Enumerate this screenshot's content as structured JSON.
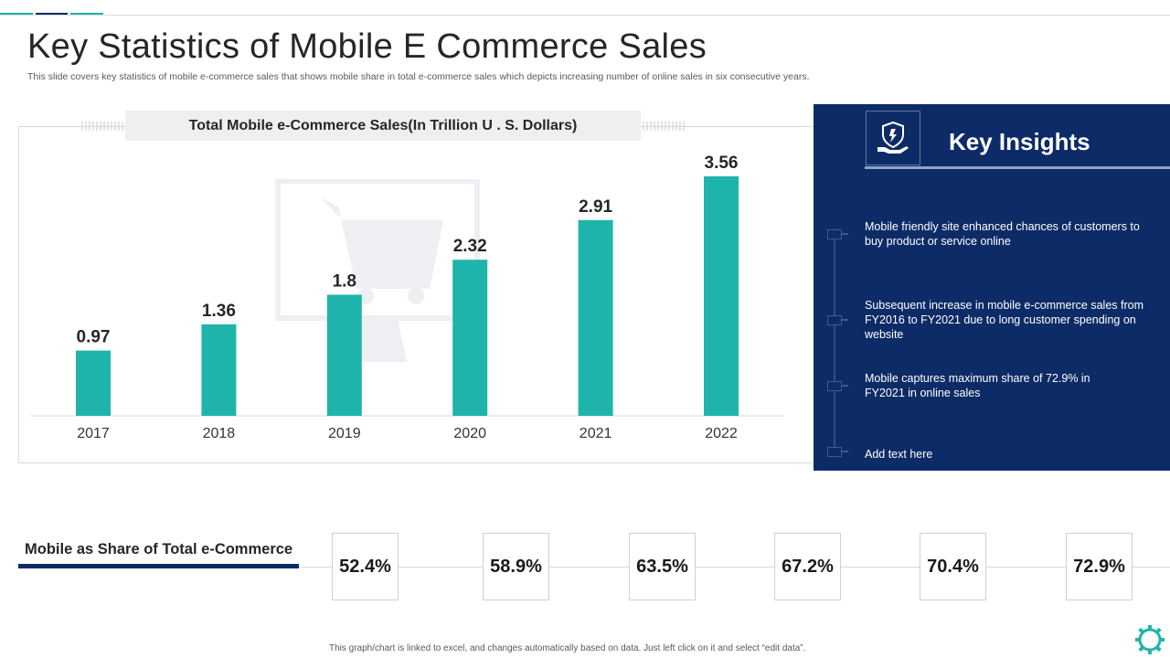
{
  "colors": {
    "accent_teal": "#1fb4ab",
    "accent_navy": "#0d2b66",
    "bar": "#1fb4ab",
    "panel": "#0d2b66"
  },
  "header": {
    "title": "Key Statistics of Mobile E Commerce Sales",
    "subtitle": "This slide covers key statistics of mobile e-commerce sales that shows mobile share in total e-commerce sales which depicts increasing number of online sales in six consecutive years."
  },
  "chart_data": {
    "type": "bar",
    "title": "Total Mobile e-Commerce Sales(In Trillion U . S. Dollars)",
    "categories": [
      "2017",
      "2018",
      "2019",
      "2020",
      "2021",
      "2022"
    ],
    "values": [
      0.97,
      1.36,
      1.8,
      2.32,
      2.91,
      3.56
    ],
    "value_labels": [
      "0.97",
      "1.36",
      "1.8",
      "2.32",
      "2.91",
      "3.56"
    ],
    "xlabel": "",
    "ylabel": "",
    "ylim": [
      0,
      3.6
    ],
    "grid": false,
    "legend": "none"
  },
  "insights": {
    "title": "Key Insights",
    "icon": "hand-shield-icon",
    "items": [
      "Mobile friendly site enhanced chances of customers to buy product or service online",
      "Subsequent increase in mobile e-commerce sales from FY2016 to FY2021 due to long customer spending on website",
      "Mobile captures maximum share of 72.9% in FY2021 in online sales",
      "Add text here"
    ]
  },
  "share": {
    "label": "Mobile as Share of Total e-Commerce",
    "values": [
      "52.4%",
      "58.9%",
      "63.5%",
      "67.2%",
      "70.4%",
      "72.9%"
    ]
  },
  "footer": {
    "note": "This graph/chart is linked to excel, and changes automatically based on data. Just left click on it and select “edit data”.",
    "icon": "gear-icon"
  }
}
